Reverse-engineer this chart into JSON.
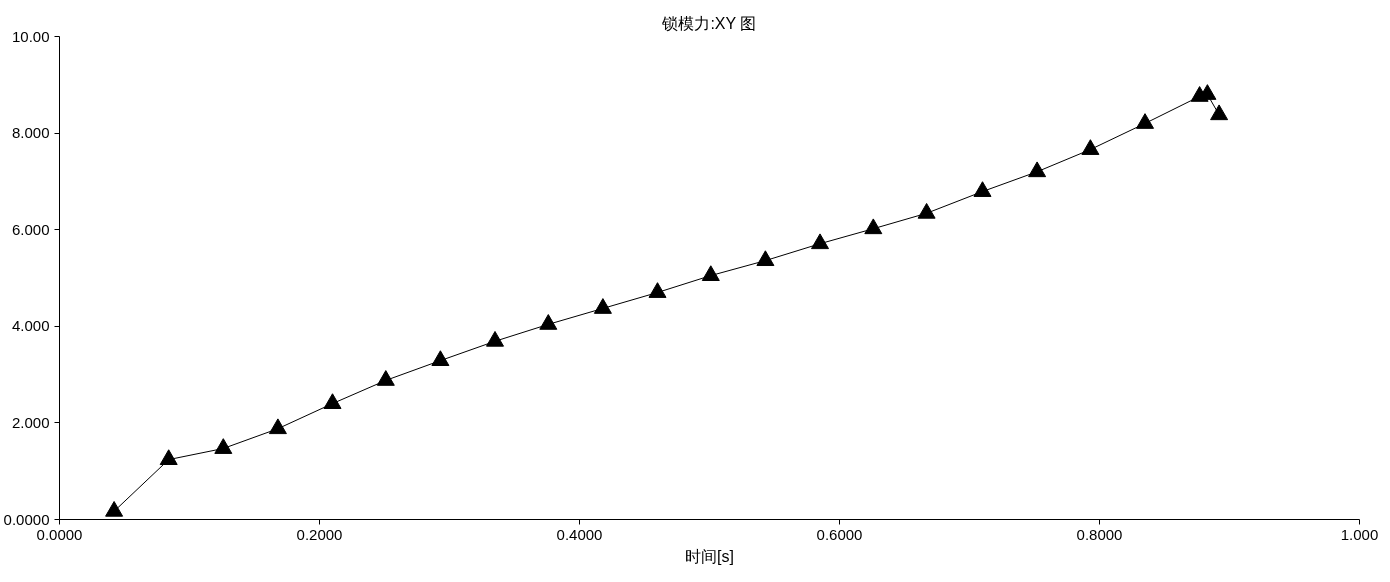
{
  "chart_data": {
    "type": "line",
    "title": "锁模力:XY 图",
    "xlabel": "时间[s]",
    "x": [
      0.042,
      0.084,
      0.126,
      0.168,
      0.21,
      0.251,
      0.293,
      0.335,
      0.376,
      0.418,
      0.46,
      0.501,
      0.543,
      0.585,
      0.626,
      0.667,
      0.71,
      0.752,
      0.793,
      0.835,
      0.877,
      0.883,
      0.892
    ],
    "series": [
      {
        "color": "#000000",
        "values": [
          0.17,
          1.24,
          1.47,
          1.88,
          2.4,
          2.88,
          3.29,
          3.69,
          4.04,
          4.37,
          4.7,
          5.05,
          5.36,
          5.71,
          6.02,
          6.34,
          6.79,
          7.2,
          7.66,
          8.2,
          8.76,
          8.8,
          8.38
        ]
      }
    ],
    "xlim": [
      0,
      1
    ],
    "ylim": [
      0,
      10
    ],
    "xticks": [
      {
        "value": 0,
        "label": "0.0000"
      },
      {
        "value": 0.2,
        "label": "0.2000"
      },
      {
        "value": 0.4,
        "label": "0.4000"
      },
      {
        "value": 0.6,
        "label": "0.6000"
      },
      {
        "value": 0.8,
        "label": "0.8000"
      },
      {
        "value": 1,
        "label": "1.000"
      }
    ],
    "yticks": [
      {
        "value": 0,
        "label": "0.0000"
      },
      {
        "value": 2,
        "label": "2.000"
      },
      {
        "value": 4,
        "label": "4.000"
      },
      {
        "value": 6,
        "label": "6.000"
      },
      {
        "value": 8,
        "label": "8.000"
      },
      {
        "value": 10,
        "label": "10.00"
      }
    ],
    "marker": "triangle",
    "line_style": "solid"
  }
}
